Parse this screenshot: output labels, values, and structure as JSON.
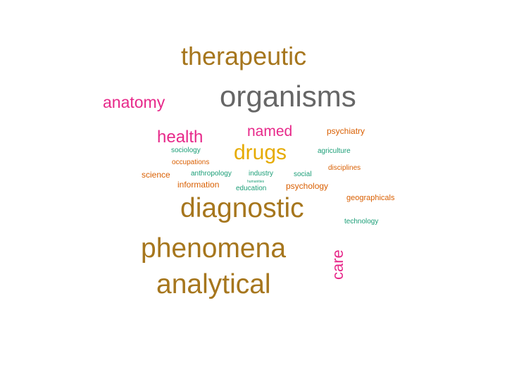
{
  "words": {
    "therapeutic": "therapeutic",
    "organisms": "organisms",
    "anatomy": "anatomy",
    "health": "health",
    "named": "named",
    "psychiatry": "psychiatry",
    "drugs": "drugs",
    "sociology": "sociology",
    "agriculture": "agriculture",
    "occupations": "occupations",
    "disciplines": "disciplines",
    "science": "science",
    "anthropology": "anthropology",
    "industry": "industry",
    "social": "social",
    "humanities": "humanities",
    "information": "information",
    "education": "education",
    "psychology": "psychology",
    "geographicals": "geographicals",
    "diagnostic": "diagnostic",
    "technology": "technology",
    "phenomena": "phenomena",
    "care": "care",
    "analytical": "analytical"
  },
  "colors": {
    "brown": "#a6761d",
    "gray": "#666666",
    "pink": "#e7298a",
    "gold": "#e6ab02",
    "orange": "#d95f02",
    "teal": "#1b9e77"
  }
}
